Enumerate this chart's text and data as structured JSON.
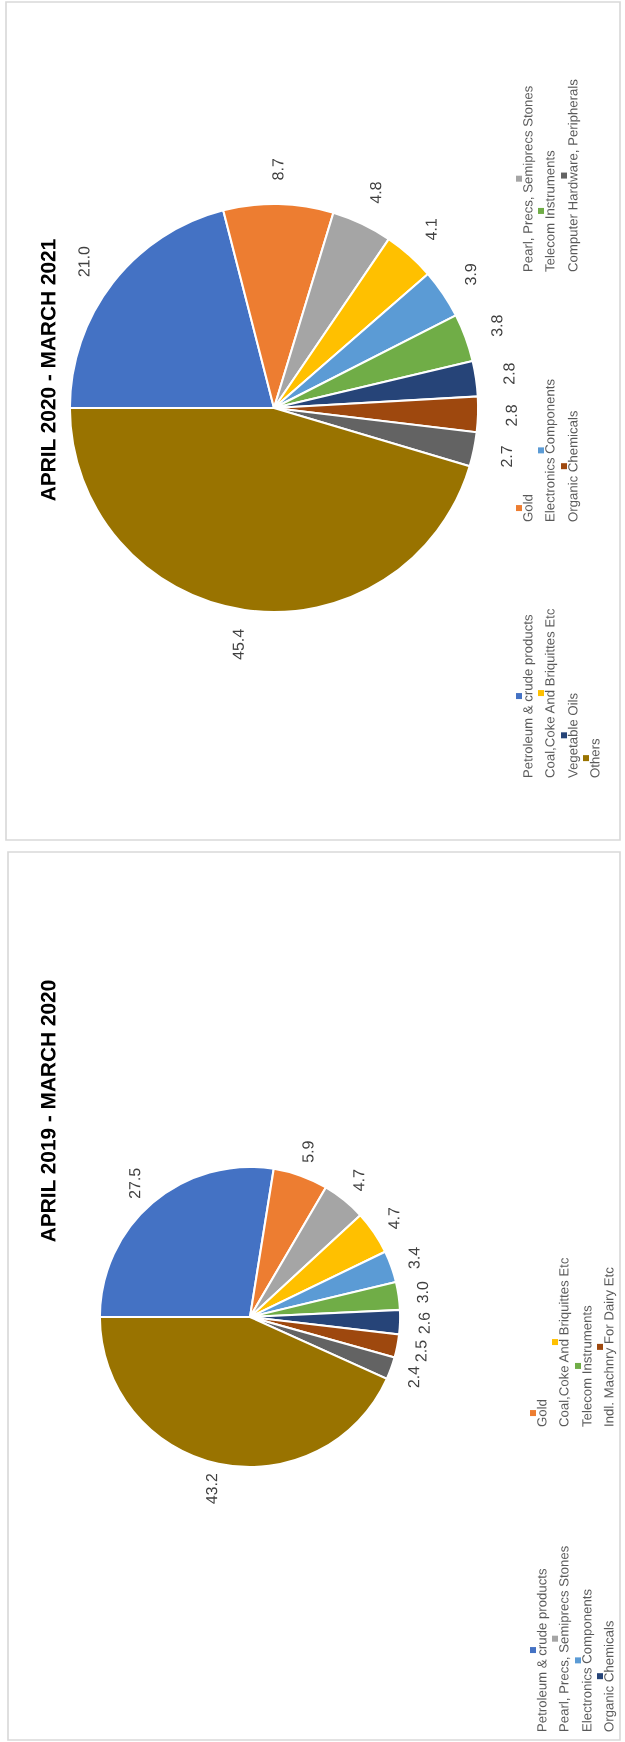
{
  "chart_data": [
    {
      "type": "pie",
      "title": "APRIL 2020 - MARCH 2021",
      "categories": [
        "Petroleum & crude products",
        "Gold",
        "Pearl, Precs, Semiprecs Stones",
        "Coal,Coke And Briquittes Etc",
        "Electronics Components",
        "Telecom Instruments",
        "Vegetable Oils",
        "Organic Chemicals",
        "Computer Hardware, Peripherals",
        "Others"
      ],
      "values": [
        21.0,
        8.7,
        4.8,
        4.1,
        3.9,
        3.8,
        2.8,
        2.8,
        2.7,
        45.4
      ],
      "value_labels": [
        "21.0",
        "8.7",
        "4.8",
        "4.1",
        "3.9",
        "3.8",
        "2.8",
        "2.8",
        "2.7",
        "45.4"
      ],
      "colors": [
        "#4472c4",
        "#ed7d31",
        "#a5a5a5",
        "#ffc000",
        "#5b9bd5",
        "#70ad47",
        "#264478",
        "#9e480e",
        "#636363",
        "#997300"
      ],
      "legend": "right"
    },
    {
      "type": "pie",
      "title": "APRIL 2019 - MARCH 2020",
      "categories": [
        "Petroleum & crude products",
        "Gold",
        "Pearl, Precs, Semiprecs Stones",
        "Coal,Coke And Briquittes Etc",
        "Electronics Components",
        "Telecom Instruments",
        "Organic Chemicals",
        "Indl. Machnry For Dairy Etc",
        null,
        null
      ],
      "values": [
        27.5,
        5.9,
        4.7,
        4.7,
        3.4,
        3.0,
        2.6,
        2.5,
        2.4,
        43.2
      ],
      "value_labels": [
        "27.5",
        "5.9",
        "4.7",
        "4.7",
        "3.4",
        "3.0",
        "2.6",
        "2.5",
        "2.4",
        "43.2"
      ],
      "colors": [
        "#4472c4",
        "#ed7d31",
        "#a5a5a5",
        "#ffc000",
        "#5b9bd5",
        "#70ad47",
        "#264478",
        "#9e480e",
        "#636363",
        "#997300"
      ],
      "legend": "right"
    }
  ]
}
